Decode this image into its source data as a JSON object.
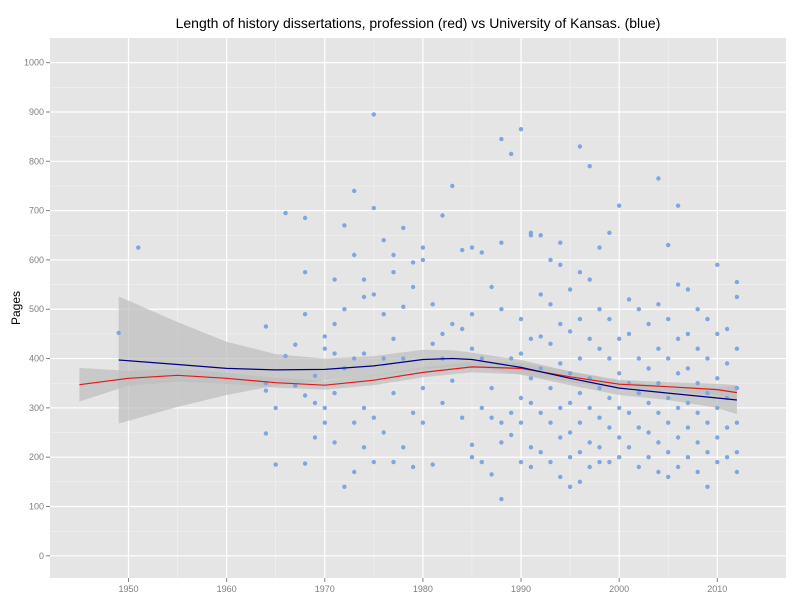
{
  "chart_data": {
    "type": "scatter",
    "title": "Length of history dissertations, profession (red) vs University of Kansas. (blue)",
    "xlabel": "",
    "ylabel": "Pages",
    "xlim": [
      1942,
      2017
    ],
    "ylim": [
      -45,
      1050
    ],
    "x_ticks": [
      1950,
      1960,
      1970,
      1980,
      1990,
      2000,
      2010
    ],
    "y_ticks": [
      0,
      100,
      200,
      300,
      400,
      500,
      600,
      700,
      800,
      900,
      1000
    ],
    "grid": true,
    "colors": {
      "panel": "#e5e5e5",
      "grid_major": "#ffffff",
      "grid_minor": "#f2f2f2",
      "points": "#7ea6e0",
      "profession": "#e41a1c",
      "kansas": "#000080",
      "ribbon": "#bdbdbd"
    },
    "series": [
      {
        "values": [
          [
            1949,
            452
          ],
          [
            1951,
            625
          ],
          [
            1964,
            465
          ],
          [
            1964,
            350
          ],
          [
            1964,
            335
          ],
          [
            1964,
            248
          ],
          [
            1965,
            300
          ],
          [
            1965,
            185
          ],
          [
            1966,
            695
          ],
          [
            1966,
            405
          ],
          [
            1967,
            428
          ],
          [
            1967,
            345
          ],
          [
            1968,
            575
          ],
          [
            1968,
            490
          ],
          [
            1968,
            325
          ],
          [
            1968,
            187
          ],
          [
            1968,
            685
          ],
          [
            1969,
            310
          ],
          [
            1969,
            240
          ],
          [
            1969,
            365
          ],
          [
            1970,
            445
          ],
          [
            1970,
            420
          ],
          [
            1970,
            300
          ],
          [
            1970,
            270
          ],
          [
            1971,
            560
          ],
          [
            1971,
            470
          ],
          [
            1971,
            410
          ],
          [
            1971,
            330
          ],
          [
            1971,
            230
          ],
          [
            1972,
            670
          ],
          [
            1972,
            500
          ],
          [
            1972,
            380
          ],
          [
            1972,
            140
          ],
          [
            1973,
            740
          ],
          [
            1973,
            610
          ],
          [
            1973,
            400
          ],
          [
            1973,
            270
          ],
          [
            1973,
            170
          ],
          [
            1974,
            560
          ],
          [
            1974,
            525
          ],
          [
            1974,
            410
          ],
          [
            1974,
            300
          ],
          [
            1974,
            220
          ],
          [
            1975,
            895
          ],
          [
            1975,
            705
          ],
          [
            1975,
            530
          ],
          [
            1975,
            280
          ],
          [
            1975,
            190
          ],
          [
            1976,
            640
          ],
          [
            1976,
            490
          ],
          [
            1976,
            400
          ],
          [
            1976,
            250
          ],
          [
            1977,
            610
          ],
          [
            1977,
            575
          ],
          [
            1977,
            440
          ],
          [
            1977,
            330
          ],
          [
            1977,
            190
          ],
          [
            1978,
            665
          ],
          [
            1978,
            505
          ],
          [
            1978,
            400
          ],
          [
            1978,
            220
          ],
          [
            1979,
            595
          ],
          [
            1979,
            545
          ],
          [
            1979,
            290
          ],
          [
            1979,
            180
          ],
          [
            1980,
            625
          ],
          [
            1980,
            600
          ],
          [
            1980,
            340
          ],
          [
            1980,
            270
          ],
          [
            1981,
            510
          ],
          [
            1981,
            430
          ],
          [
            1981,
            185
          ],
          [
            1982,
            690
          ],
          [
            1982,
            450
          ],
          [
            1982,
            400
          ],
          [
            1982,
            310
          ],
          [
            1983,
            750
          ],
          [
            1983,
            470
          ],
          [
            1983,
            355
          ],
          [
            1984,
            620
          ],
          [
            1984,
            460
          ],
          [
            1984,
            280
          ],
          [
            1985,
            625
          ],
          [
            1985,
            490
          ],
          [
            1985,
            420
          ],
          [
            1985,
            225
          ],
          [
            1985,
            200
          ],
          [
            1986,
            615
          ],
          [
            1986,
            400
          ],
          [
            1986,
            300
          ],
          [
            1986,
            190
          ],
          [
            1987,
            545
          ],
          [
            1987,
            340
          ],
          [
            1987,
            280
          ],
          [
            1987,
            165
          ],
          [
            1988,
            845
          ],
          [
            1988,
            635
          ],
          [
            1988,
            500
          ],
          [
            1988,
            270
          ],
          [
            1988,
            230
          ],
          [
            1988,
            115
          ],
          [
            1989,
            815
          ],
          [
            1989,
            400
          ],
          [
            1989,
            290
          ],
          [
            1989,
            245
          ],
          [
            1990,
            865
          ],
          [
            1990,
            480
          ],
          [
            1990,
            410
          ],
          [
            1990,
            320
          ],
          [
            1990,
            270
          ],
          [
            1990,
            190
          ],
          [
            1991,
            650
          ],
          [
            1991,
            655
          ],
          [
            1991,
            440
          ],
          [
            1991,
            360
          ],
          [
            1991,
            310
          ],
          [
            1991,
            220
          ],
          [
            1991,
            180
          ],
          [
            1992,
            650
          ],
          [
            1992,
            530
          ],
          [
            1992,
            445
          ],
          [
            1992,
            380
          ],
          [
            1992,
            290
          ],
          [
            1992,
            210
          ],
          [
            1993,
            600
          ],
          [
            1993,
            510
          ],
          [
            1993,
            430
          ],
          [
            1993,
            340
          ],
          [
            1993,
            270
          ],
          [
            1993,
            190
          ],
          [
            1994,
            635
          ],
          [
            1994,
            590
          ],
          [
            1994,
            470
          ],
          [
            1994,
            390
          ],
          [
            1994,
            300
          ],
          [
            1994,
            240
          ],
          [
            1994,
            160
          ],
          [
            1995,
            540
          ],
          [
            1995,
            455
          ],
          [
            1995,
            370
          ],
          [
            1995,
            310
          ],
          [
            1995,
            250
          ],
          [
            1995,
            200
          ],
          [
            1995,
            140
          ],
          [
            1996,
            830
          ],
          [
            1996,
            575
          ],
          [
            1996,
            480
          ],
          [
            1996,
            400
          ],
          [
            1996,
            330
          ],
          [
            1996,
            270
          ],
          [
            1996,
            210
          ],
          [
            1996,
            150
          ],
          [
            1997,
            790
          ],
          [
            1997,
            560
          ],
          [
            1997,
            440
          ],
          [
            1997,
            360
          ],
          [
            1997,
            300
          ],
          [
            1997,
            230
          ],
          [
            1997,
            180
          ],
          [
            1998,
            625
          ],
          [
            1998,
            500
          ],
          [
            1998,
            420
          ],
          [
            1998,
            340
          ],
          [
            1998,
            280
          ],
          [
            1998,
            220
          ],
          [
            1998,
            190
          ],
          [
            1999,
            655
          ],
          [
            1999,
            480
          ],
          [
            1999,
            400
          ],
          [
            1999,
            320
          ],
          [
            1999,
            260
          ],
          [
            1999,
            190
          ],
          [
            2000,
            710
          ],
          [
            2000,
            440
          ],
          [
            2000,
            370
          ],
          [
            2000,
            300
          ],
          [
            2000,
            240
          ],
          [
            2000,
            200
          ],
          [
            2001,
            520
          ],
          [
            2001,
            450
          ],
          [
            2001,
            350
          ],
          [
            2001,
            290
          ],
          [
            2001,
            220
          ],
          [
            2002,
            500
          ],
          [
            2002,
            400
          ],
          [
            2002,
            330
          ],
          [
            2002,
            260
          ],
          [
            2002,
            180
          ],
          [
            2003,
            470
          ],
          [
            2003,
            380
          ],
          [
            2003,
            310
          ],
          [
            2003,
            250
          ],
          [
            2003,
            200
          ],
          [
            2004,
            765
          ],
          [
            2004,
            510
          ],
          [
            2004,
            420
          ],
          [
            2004,
            350
          ],
          [
            2004,
            290
          ],
          [
            2004,
            230
          ],
          [
            2004,
            170
          ],
          [
            2005,
            630
          ],
          [
            2005,
            480
          ],
          [
            2005,
            400
          ],
          [
            2005,
            320
          ],
          [
            2005,
            270
          ],
          [
            2005,
            210
          ],
          [
            2005,
            160
          ],
          [
            2006,
            710
          ],
          [
            2006,
            550
          ],
          [
            2006,
            440
          ],
          [
            2006,
            370
          ],
          [
            2006,
            300
          ],
          [
            2006,
            240
          ],
          [
            2006,
            180
          ],
          [
            2007,
            540
          ],
          [
            2007,
            450
          ],
          [
            2007,
            380
          ],
          [
            2007,
            310
          ],
          [
            2007,
            260
          ],
          [
            2007,
            200
          ],
          [
            2008,
            500
          ],
          [
            2008,
            420
          ],
          [
            2008,
            350
          ],
          [
            2008,
            290
          ],
          [
            2008,
            230
          ],
          [
            2008,
            170
          ],
          [
            2009,
            480
          ],
          [
            2009,
            400
          ],
          [
            2009,
            330
          ],
          [
            2009,
            270
          ],
          [
            2009,
            210
          ],
          [
            2009,
            140
          ],
          [
            2010,
            590
          ],
          [
            2010,
            450
          ],
          [
            2010,
            360
          ],
          [
            2010,
            300
          ],
          [
            2010,
            240
          ],
          [
            2010,
            190
          ],
          [
            2011,
            460
          ],
          [
            2011,
            390
          ],
          [
            2011,
            320
          ],
          [
            2011,
            260
          ],
          [
            2011,
            200
          ],
          [
            2012,
            555
          ],
          [
            2012,
            525
          ],
          [
            2012,
            420
          ],
          [
            2012,
            340
          ],
          [
            2012,
            270
          ],
          [
            2012,
            210
          ],
          [
            2012,
            170
          ]
        ]
      },
      {
        "type": "smooth",
        "x": [
          1945,
          1950,
          1955,
          1960,
          1965,
          1970,
          1975,
          1980,
          1985,
          1990,
          1995,
          2000,
          2005,
          2010,
          2012
        ],
        "values": [
          347,
          360,
          366,
          360,
          351,
          346,
          356,
          372,
          383,
          380,
          363,
          348,
          343,
          337,
          331
        ],
        "ci_lower": [
          313,
          345,
          353,
          349,
          341,
          337,
          346,
          362,
          372,
          368,
          352,
          339,
          334,
          325,
          316
        ],
        "ci_upper": [
          381,
          375,
          379,
          371,
          361,
          355,
          366,
          382,
          394,
          392,
          374,
          357,
          352,
          349,
          346
        ]
      },
      {
        "type": "smooth",
        "x": [
          1949,
          1955,
          1960,
          1965,
          1970,
          1975,
          1980,
          1983,
          1985,
          1990,
          1995,
          2000,
          2005,
          2010,
          2012
        ],
        "values": [
          397,
          388,
          380,
          377,
          378,
          385,
          398,
          400,
          398,
          382,
          360,
          340,
          330,
          320,
          316
        ],
        "ci_lower": [
          268,
          302,
          326,
          345,
          356,
          365,
          378,
          383,
          384,
          367,
          346,
          326,
          316,
          300,
          287
        ],
        "ci_upper": [
          526,
          474,
          434,
          409,
          400,
          405,
          418,
          417,
          412,
          397,
          374,
          354,
          344,
          340,
          345
        ]
      }
    ]
  }
}
